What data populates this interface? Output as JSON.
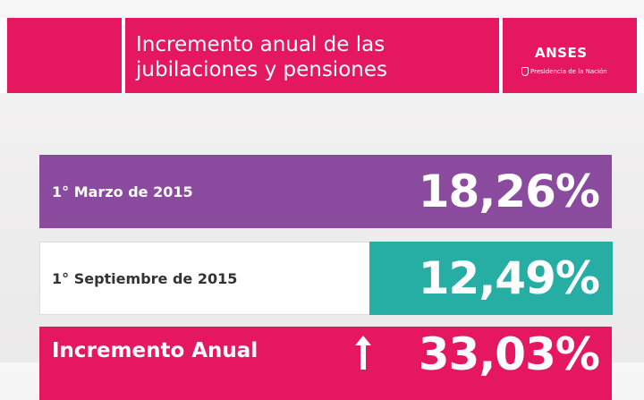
{
  "colors": {
    "pink": "#e5175f",
    "purple": "#8a4a9e",
    "teal": "#26aea5"
  },
  "header": {
    "title_line1": "Incremento anual de las",
    "title_line2": "jubilaciones y pensiones",
    "brand": "ANSES",
    "brand_sub": "Presidencia de la Nación",
    "brand_icon": "shield-icon"
  },
  "rows": [
    {
      "label": "1° Marzo de 2015",
      "value": "18,26%"
    },
    {
      "label": "1° Septiembre de 2015",
      "value": "12,49%"
    },
    {
      "label": "Incremento Anual",
      "value": "33,03%",
      "icon": "arrow-up-icon"
    }
  ]
}
